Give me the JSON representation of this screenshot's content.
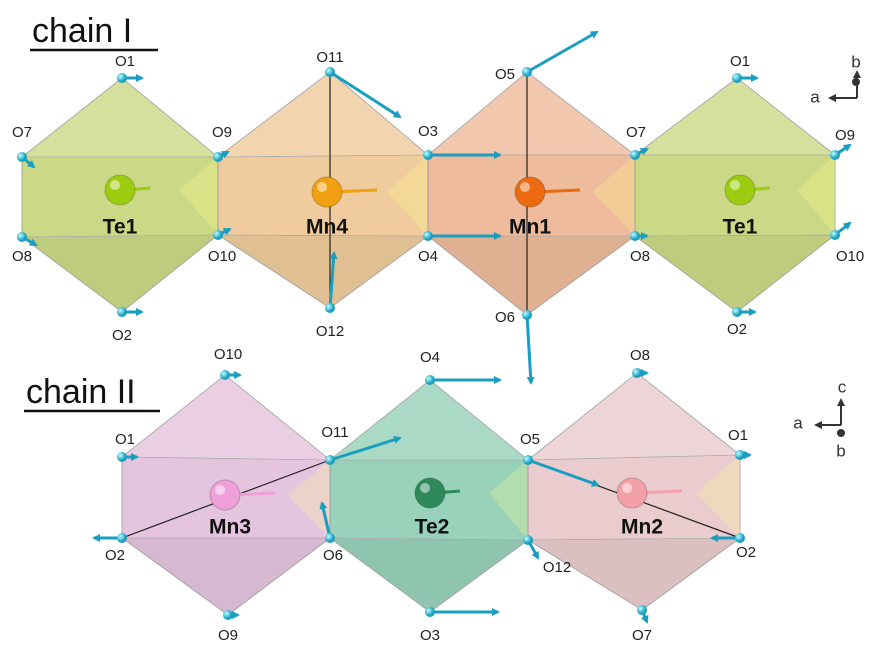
{
  "chain_1": {
    "title": "chain I",
    "centers": [
      "Te1",
      "Mn4",
      "Mn1",
      "Te1"
    ],
    "oxygens": [
      "O1",
      "O7",
      "O9",
      "O8",
      "O10",
      "O2",
      "O11",
      "O12",
      "O3",
      "O4",
      "O5",
      "O6",
      "O7",
      "O8",
      "O1",
      "O9",
      "O10",
      "O2"
    ],
    "axes": [
      "a",
      "b"
    ]
  },
  "chain_2": {
    "title": "chain II",
    "centers": [
      "Mn3",
      "Te2",
      "Mn2"
    ],
    "oxygens": [
      "O10",
      "O1",
      "O2",
      "O11",
      "O6",
      "O9",
      "O4",
      "O3",
      "O5",
      "O12",
      "O8",
      "O1",
      "O2",
      "O7"
    ],
    "axes": [
      "c",
      "a",
      "b"
    ]
  }
}
